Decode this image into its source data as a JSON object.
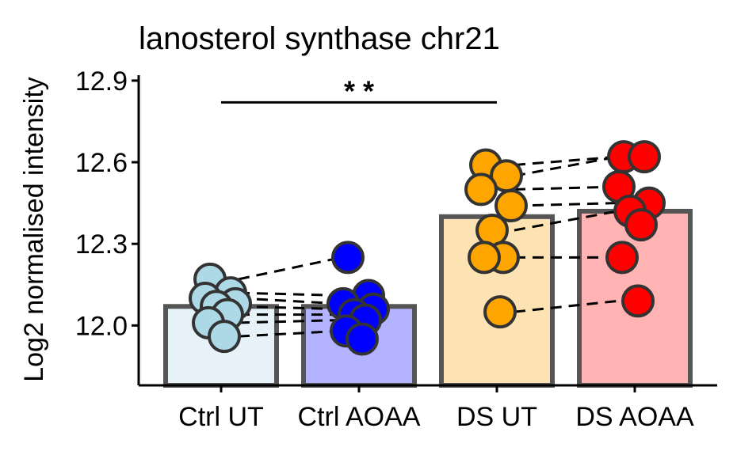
{
  "chart_data": {
    "type": "bar",
    "title": "lanosterol synthase chr21",
    "xlabel": "",
    "ylabel": "Log2 normalised intensity",
    "ylim": [
      11.78,
      12.92
    ],
    "yticks": [
      12.0,
      12.3,
      12.6,
      12.9
    ],
    "ytick_labels": [
      "12.0",
      "12.3",
      "12.6",
      "12.9"
    ],
    "categories": [
      "Ctrl UT",
      "Ctrl AOAA",
      "DS UT",
      "DS AOAA"
    ],
    "values": [
      12.07,
      12.07,
      12.4,
      12.42
    ],
    "bar_fill_colors": [
      "#e6f2f8",
      "#b3b3ff",
      "#fde3b3",
      "#ffb3b3"
    ],
    "point_colors": [
      "#add8e6",
      "#0000ff",
      "#ffa500",
      "#ff0000"
    ],
    "bar_edge_color": "#555555",
    "points": [
      [
        12.17,
        12.12,
        12.1,
        12.08,
        12.07,
        12.04,
        12.01,
        11.96
      ],
      [
        12.25,
        12.11,
        12.08,
        12.06,
        12.04,
        12.02,
        11.98,
        11.95
      ],
      [
        12.59,
        12.55,
        12.5,
        12.44,
        12.35,
        12.25,
        12.25,
        12.05
      ],
      [
        12.62,
        12.62,
        12.51,
        12.45,
        12.42,
        12.37,
        12.25,
        12.09
      ]
    ],
    "pairs": [
      {
        "from": [
          0,
          12.17
        ],
        "to": [
          1,
          12.25
        ]
      },
      {
        "from": [
          0,
          12.12
        ],
        "to": [
          1,
          12.11
        ]
      },
      {
        "from": [
          0,
          12.1
        ],
        "to": [
          1,
          12.08
        ]
      },
      {
        "from": [
          0,
          12.07
        ],
        "to": [
          1,
          12.06
        ]
      },
      {
        "from": [
          0,
          12.04
        ],
        "to": [
          1,
          12.04
        ]
      },
      {
        "from": [
          0,
          12.01
        ],
        "to": [
          1,
          12.02
        ]
      },
      {
        "from": [
          0,
          11.96
        ],
        "to": [
          1,
          11.98
        ]
      },
      {
        "from": [
          2,
          12.59
        ],
        "to": [
          3,
          12.62
        ]
      },
      {
        "from": [
          2,
          12.55
        ],
        "to": [
          3,
          12.62
        ]
      },
      {
        "from": [
          2,
          12.5
        ],
        "to": [
          3,
          12.51
        ]
      },
      {
        "from": [
          2,
          12.44
        ],
        "to": [
          3,
          12.45
        ]
      },
      {
        "from": [
          2,
          12.35
        ],
        "to": [
          3,
          12.42
        ]
      },
      {
        "from": [
          2,
          12.25
        ],
        "to": [
          3,
          12.25
        ]
      },
      {
        "from": [
          2,
          12.05
        ],
        "to": [
          3,
          12.09
        ]
      }
    ],
    "significance": {
      "from": 0,
      "to": 2,
      "y": 12.82,
      "label": "* *"
    },
    "grid": false,
    "legend": "none"
  }
}
